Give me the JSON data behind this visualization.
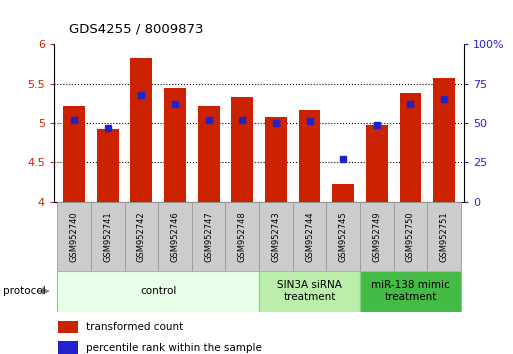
{
  "title": "GDS4255 / 8009873",
  "samples": [
    "GSM952740",
    "GSM952741",
    "GSM952742",
    "GSM952746",
    "GSM952747",
    "GSM952748",
    "GSM952743",
    "GSM952744",
    "GSM952745",
    "GSM952749",
    "GSM952750",
    "GSM952751"
  ],
  "red_values": [
    5.22,
    4.93,
    5.82,
    5.45,
    5.22,
    5.33,
    5.08,
    5.17,
    4.23,
    4.97,
    5.38,
    5.57
  ],
  "blue_values": [
    52,
    47,
    68,
    62,
    52,
    52,
    50,
    51,
    27,
    49,
    62,
    65
  ],
  "ylim_left": [
    4.0,
    6.0
  ],
  "ylim_right": [
    0,
    100
  ],
  "yticks_left": [
    4.0,
    4.5,
    5.0,
    5.5,
    6.0
  ],
  "ytick_labels_left": [
    "4",
    "4.5",
    "5",
    "5.5",
    "6"
  ],
  "yticks_right": [
    0,
    25,
    50,
    75,
    100
  ],
  "ytick_labels_right": [
    "0",
    "25",
    "50",
    "75",
    "100%"
  ],
  "bar_bottom": 4.0,
  "bar_color": "#cc2200",
  "dot_color": "#2222cc",
  "bg_color": "#ffffff",
  "axis_label_color_left": "#cc2200",
  "axis_label_color_right": "#2222cc",
  "group_defs": [
    {
      "start": 0,
      "end": 5,
      "label": "control",
      "color": "#e8ffe8"
    },
    {
      "start": 6,
      "end": 8,
      "label": "SIN3A siRNA\ntreatment",
      "color": "#bbeeaa"
    },
    {
      "start": 9,
      "end": 11,
      "label": "miR-138 mimic\ntreatment",
      "color": "#44bb44"
    }
  ],
  "legend_items": [
    {
      "label": "transformed count",
      "color": "#cc2200"
    },
    {
      "label": "percentile rank within the sample",
      "color": "#2222cc"
    }
  ],
  "protocol_label": "protocol",
  "sample_box_color": "#cccccc",
  "sample_box_border": "#999999",
  "bar_width": 0.65
}
